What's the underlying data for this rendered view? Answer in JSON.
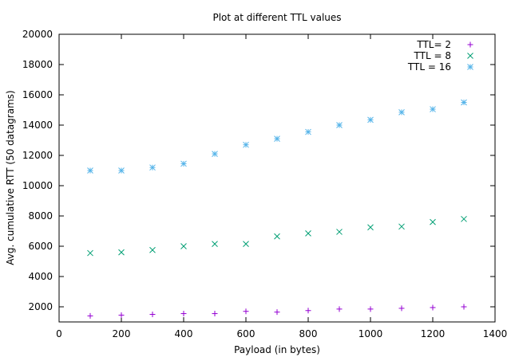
{
  "chart_data": {
    "type": "scatter",
    "title": "Plot at different TTL values",
    "xlabel": "Payload (in bytes)",
    "ylabel": "Avg. cumulative RTT (50 datagrams)",
    "xlim": [
      0,
      1400
    ],
    "ylim": [
      1000,
      20000
    ],
    "xticks": [
      0,
      200,
      400,
      600,
      800,
      1000,
      1200,
      1400
    ],
    "yticks": [
      2000,
      4000,
      6000,
      8000,
      10000,
      12000,
      14000,
      16000,
      18000,
      20000
    ],
    "grid": false,
    "legend_position": "top-right",
    "x": [
      100,
      200,
      300,
      400,
      500,
      600,
      700,
      800,
      900,
      1000,
      1100,
      1200,
      1300
    ],
    "series": [
      {
        "name": "TTL= 2",
        "marker": "plus",
        "color": "#9400d3",
        "values": [
          1400,
          1450,
          1500,
          1550,
          1550,
          1700,
          1650,
          1750,
          1850,
          1850,
          1900,
          1950,
          2000
        ]
      },
      {
        "name": "TTL = 8",
        "marker": "cross",
        "color": "#009e73",
        "values": [
          5550,
          5600,
          5750,
          6000,
          6150,
          6150,
          6650,
          6850,
          6950,
          7250,
          7300,
          7600,
          7800
        ]
      },
      {
        "name": "TTL = 16",
        "marker": "star",
        "color": "#56b4e9",
        "values": [
          11000,
          11000,
          11200,
          11450,
          12100,
          12700,
          13100,
          13550,
          14000,
          14350,
          14850,
          15050,
          15500
        ]
      }
    ]
  }
}
